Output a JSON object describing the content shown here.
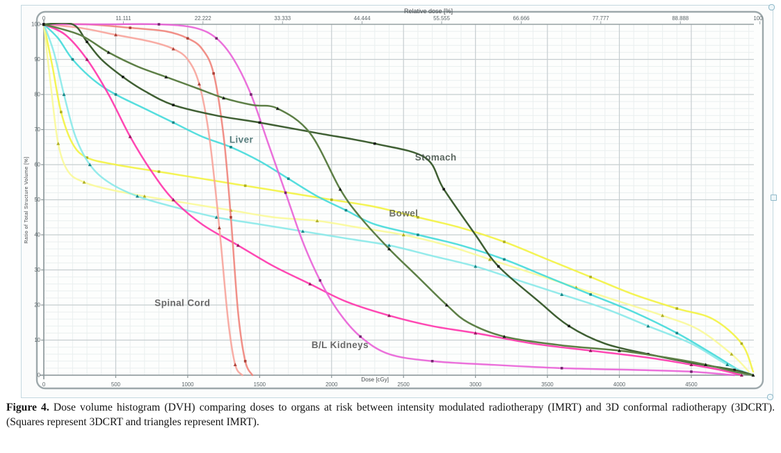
{
  "figure": {
    "caption_label": "Figure 4.",
    "caption_text": " Dose volume histogram (DVH) comparing doses to organs at risk between intensity modulated radiotherapy (IMRT) and 3D conformal radiotherapy (3DCRT). (Squares represent 3DCRT and triangles represent IMRT)."
  },
  "chart_data": {
    "type": "line",
    "title": "",
    "top_axis": {
      "label": "Relative dose [%]",
      "ticks": [
        0,
        11.111,
        22.222,
        33.333,
        44.444,
        55.555,
        66.666,
        77.777,
        88.888,
        100
      ],
      "max_dose_cgy": 4977
    },
    "bottom_axis": {
      "label": "Dose [cGy]",
      "ticks": [
        0,
        500,
        1000,
        1500,
        2000,
        2500,
        3000,
        3500,
        4000,
        4500
      ],
      "range": [
        0,
        4935
      ]
    },
    "left_axis": {
      "label": "Ratio of Total Structure Volume [%]",
      "ticks": [
        100,
        90,
        80,
        70,
        60,
        50,
        40,
        30,
        20,
        10,
        0
      ],
      "range": [
        0,
        100
      ]
    },
    "grid": "major+minor",
    "legend_note": "squares = 3DCRT, triangles = IMRT",
    "annotations": [
      {
        "text": "Liver",
        "dose": 1290,
        "vol": 67,
        "color": "#3f6a6a"
      },
      {
        "text": "Stomach",
        "dose": 2580,
        "vol": 62,
        "color": "#45524a"
      },
      {
        "text": "Bowel",
        "dose": 2400,
        "vol": 46,
        "color": "#5c6052"
      },
      {
        "text": "Spinal Cord",
        "dose": 770,
        "vol": 20.5,
        "color": "#555555"
      },
      {
        "text": "B/L Kidneys",
        "dose": 1860,
        "vol": 8.5,
        "color": "#555555"
      }
    ],
    "series": [
      {
        "name": "Bowel (3DCRT)",
        "organ": "bowel",
        "technique": "3DCRT",
        "marker": "square",
        "color": "#f2f23c",
        "marker_color": "#a8a81a",
        "points": [
          [
            0,
            100
          ],
          [
            60,
            88
          ],
          [
            120,
            75
          ],
          [
            200,
            66
          ],
          [
            300,
            62
          ],
          [
            500,
            60
          ],
          [
            800,
            58
          ],
          [
            1100,
            56
          ],
          [
            1400,
            54
          ],
          [
            1700,
            52
          ],
          [
            2000,
            50
          ],
          [
            2300,
            48
          ],
          [
            2600,
            45
          ],
          [
            2900,
            42
          ],
          [
            3200,
            38
          ],
          [
            3500,
            33
          ],
          [
            3800,
            28
          ],
          [
            4100,
            23
          ],
          [
            4400,
            19
          ],
          [
            4650,
            16
          ],
          [
            4850,
            9
          ],
          [
            4930,
            1
          ]
        ]
      },
      {
        "name": "Bowel (IMRT)",
        "organ": "bowel",
        "technique": "IMRT",
        "marker": "triangle",
        "color": "#f9f996",
        "marker_color": "#a8a81a",
        "points": [
          [
            0,
            100
          ],
          [
            50,
            82
          ],
          [
            100,
            66
          ],
          [
            170,
            58
          ],
          [
            280,
            55
          ],
          [
            450,
            53
          ],
          [
            700,
            51
          ],
          [
            1000,
            49
          ],
          [
            1300,
            47
          ],
          [
            1600,
            45
          ],
          [
            1900,
            44
          ],
          [
            2200,
            42
          ],
          [
            2500,
            40
          ],
          [
            2800,
            37
          ],
          [
            3100,
            33
          ],
          [
            3400,
            29
          ],
          [
            3700,
            25
          ],
          [
            4000,
            21
          ],
          [
            4300,
            17
          ],
          [
            4550,
            13
          ],
          [
            4780,
            6
          ],
          [
            4900,
            1
          ]
        ]
      },
      {
        "name": "Liver (3DCRT)",
        "organ": "liver",
        "technique": "3DCRT",
        "marker": "square",
        "color": "#3fd9d9",
        "marker_color": "#0c7f7f",
        "points": [
          [
            0,
            100
          ],
          [
            100,
            96
          ],
          [
            200,
            90
          ],
          [
            350,
            84
          ],
          [
            500,
            80
          ],
          [
            700,
            76
          ],
          [
            900,
            72
          ],
          [
            1100,
            68
          ],
          [
            1300,
            65
          ],
          [
            1500,
            61
          ],
          [
            1700,
            56
          ],
          [
            1900,
            51
          ],
          [
            2100,
            47
          ],
          [
            2300,
            43
          ],
          [
            2600,
            40
          ],
          [
            2900,
            37
          ],
          [
            3200,
            33
          ],
          [
            3500,
            28
          ],
          [
            3800,
            23
          ],
          [
            4100,
            18
          ],
          [
            4400,
            12
          ],
          [
            4650,
            6
          ],
          [
            4850,
            1
          ],
          [
            4930,
            0
          ]
        ]
      },
      {
        "name": "Liver (IMRT)",
        "organ": "liver",
        "technique": "IMRT",
        "marker": "triangle",
        "color": "#86e8e8",
        "marker_color": "#0c7f7f",
        "points": [
          [
            0,
            100
          ],
          [
            70,
            92
          ],
          [
            140,
            80
          ],
          [
            220,
            68
          ],
          [
            320,
            60
          ],
          [
            450,
            55
          ],
          [
            650,
            51
          ],
          [
            900,
            48
          ],
          [
            1200,
            45
          ],
          [
            1500,
            43
          ],
          [
            1800,
            41
          ],
          [
            2100,
            39
          ],
          [
            2400,
            37
          ],
          [
            2700,
            34
          ],
          [
            3000,
            31
          ],
          [
            3300,
            27
          ],
          [
            3600,
            23
          ],
          [
            3900,
            19
          ],
          [
            4200,
            14
          ],
          [
            4500,
            9
          ],
          [
            4750,
            3
          ],
          [
            4930,
            0
          ]
        ]
      },
      {
        "name": "B/L Kidneys (IMRT)",
        "organ": "kidneys",
        "technique": "IMRT",
        "marker": "triangle",
        "color": "#ff2fa8",
        "marker_color": "#8e0f56",
        "points": [
          [
            0,
            100
          ],
          [
            150,
            97
          ],
          [
            300,
            90
          ],
          [
            450,
            80
          ],
          [
            600,
            68
          ],
          [
            750,
            58
          ],
          [
            900,
            50
          ],
          [
            1100,
            43
          ],
          [
            1350,
            37
          ],
          [
            1600,
            31
          ],
          [
            1850,
            26
          ],
          [
            2100,
            21
          ],
          [
            2400,
            17
          ],
          [
            2700,
            14
          ],
          [
            3000,
            12
          ],
          [
            3400,
            9
          ],
          [
            3800,
            7
          ],
          [
            4200,
            5
          ],
          [
            4500,
            3
          ],
          [
            4700,
            1.5
          ],
          [
            4850,
            0
          ]
        ]
      },
      {
        "name": "Spinal Cord (3DCRT)",
        "organ": "spinal-cord",
        "technique": "3DCRT",
        "marker": "square",
        "color": "#ef8177",
        "marker_color": "#a63a30",
        "points": [
          [
            0,
            100
          ],
          [
            300,
            100
          ],
          [
            600,
            99
          ],
          [
            850,
            98
          ],
          [
            1000,
            96
          ],
          [
            1100,
            93
          ],
          [
            1180,
            86
          ],
          [
            1250,
            68
          ],
          [
            1300,
            45
          ],
          [
            1350,
            18
          ],
          [
            1400,
            4
          ],
          [
            1450,
            0
          ]
        ]
      },
      {
        "name": "Spinal Cord (IMRT)",
        "organ": "spinal-cord",
        "technique": "IMRT",
        "marker": "triangle",
        "color": "#f7a299",
        "marker_color": "#a63a30",
        "points": [
          [
            0,
            100
          ],
          [
            250,
            99
          ],
          [
            500,
            97
          ],
          [
            750,
            95
          ],
          [
            900,
            93
          ],
          [
            1000,
            90
          ],
          [
            1080,
            83
          ],
          [
            1150,
            68
          ],
          [
            1220,
            42
          ],
          [
            1280,
            16
          ],
          [
            1330,
            3
          ],
          [
            1380,
            0
          ]
        ]
      },
      {
        "name": "B/L Kidneys (3DCRT)",
        "organ": "kidneys",
        "technique": "3DCRT",
        "marker": "square",
        "color": "#e85dd6",
        "marker_color": "#6b1d66",
        "points": [
          [
            0,
            100
          ],
          [
            400,
            100
          ],
          [
            800,
            100
          ],
          [
            1050,
            99
          ],
          [
            1200,
            96
          ],
          [
            1320,
            90
          ],
          [
            1440,
            80
          ],
          [
            1560,
            66
          ],
          [
            1680,
            52
          ],
          [
            1800,
            38
          ],
          [
            1920,
            27
          ],
          [
            2050,
            18
          ],
          [
            2200,
            11
          ],
          [
            2400,
            6
          ],
          [
            2700,
            4
          ],
          [
            3100,
            3
          ],
          [
            3600,
            2
          ],
          [
            4100,
            1.5
          ],
          [
            4500,
            1
          ],
          [
            4800,
            0
          ]
        ]
      },
      {
        "name": "Stomach (3DCRT)",
        "organ": "stomach",
        "technique": "3DCRT",
        "marker": "square",
        "color": "#3f5f33",
        "marker_color": "#101410",
        "points": [
          [
            0,
            100
          ],
          [
            200,
            100
          ],
          [
            300,
            95
          ],
          [
            400,
            90
          ],
          [
            550,
            85
          ],
          [
            700,
            81
          ],
          [
            900,
            77
          ],
          [
            1200,
            74
          ],
          [
            1500,
            72
          ],
          [
            1900,
            69
          ],
          [
            2300,
            66
          ],
          [
            2650,
            62
          ],
          [
            2780,
            53
          ],
          [
            3000,
            40
          ],
          [
            3160,
            31
          ],
          [
            3440,
            21
          ],
          [
            3650,
            14
          ],
          [
            3900,
            9
          ],
          [
            4200,
            6
          ],
          [
            4500,
            3.5
          ],
          [
            4800,
            1.5
          ],
          [
            4930,
            0
          ]
        ]
      },
      {
        "name": "Stomach (IMRT)",
        "organ": "stomach",
        "technique": "IMRT",
        "marker": "triangle",
        "color": "#5d7f46",
        "marker_color": "#101410",
        "points": [
          [
            0,
            100
          ],
          [
            250,
            97
          ],
          [
            450,
            92
          ],
          [
            650,
            88
          ],
          [
            850,
            85
          ],
          [
            1050,
            82
          ],
          [
            1250,
            79
          ],
          [
            1450,
            77
          ],
          [
            1625,
            76
          ],
          [
            1850,
            69
          ],
          [
            2060,
            53
          ],
          [
            2200,
            45
          ],
          [
            2400,
            36
          ],
          [
            2600,
            28
          ],
          [
            2800,
            20
          ],
          [
            2950,
            15
          ],
          [
            3200,
            11
          ],
          [
            3600,
            8.5
          ],
          [
            4000,
            7
          ],
          [
            4330,
            5
          ],
          [
            4600,
            3
          ],
          [
            4800,
            1
          ],
          [
            4930,
            0
          ]
        ]
      }
    ]
  }
}
